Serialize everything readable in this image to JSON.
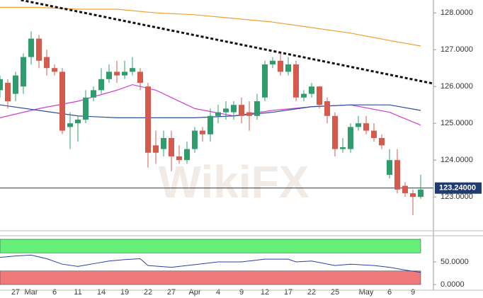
{
  "chart_data": {
    "type": "candlestick",
    "watermark": "WikiFX",
    "categories": [
      null,
      null,
      "27",
      null,
      "Mar",
      null,
      null,
      "6",
      null,
      null,
      "11",
      null,
      null,
      "14",
      null,
      null,
      "19",
      null,
      null,
      "22",
      null,
      null,
      "27",
      null,
      null,
      "Apr",
      null,
      null,
      "4",
      null,
      null,
      "9",
      null,
      null,
      "12",
      null,
      null,
      "17",
      null,
      null,
      "22",
      null,
      null,
      "25",
      null,
      null,
      null,
      "May",
      null,
      null,
      "6",
      null,
      null,
      "9",
      null
    ],
    "open": [
      125.9,
      126.1,
      125.8,
      126.0,
      126.8,
      127.3,
      126.8,
      126.5,
      126.4,
      124.9,
      125.0,
      125.1,
      125.7,
      125.9,
      126.2,
      126.4,
      126.3,
      126.4,
      126.4,
      126.0,
      124.4,
      124.3,
      124.6,
      124.1,
      124.0,
      124.3,
      124.8,
      124.7,
      125.2,
      125.3,
      125.3,
      125.5,
      125.3,
      125.2,
      125.7,
      126.6,
      126.7,
      126.4,
      126.6,
      125.7,
      125.8,
      126.0,
      125.6,
      125.2,
      124.3,
      124.3,
      124.9,
      125.0,
      124.8,
      124.6,
      123.6,
      124.0,
      123.3,
      123.1,
      123.0
    ],
    "high": [
      126.3,
      126.2,
      126.4,
      126.9,
      127.5,
      127.4,
      127.0,
      126.6,
      126.5,
      125.3,
      125.2,
      125.9,
      126.0,
      126.5,
      126.6,
      126.7,
      126.7,
      126.8,
      126.5,
      126.1,
      124.8,
      124.8,
      124.8,
      124.4,
      124.5,
      124.9,
      124.9,
      125.4,
      125.5,
      125.6,
      125.6,
      125.7,
      125.6,
      125.8,
      126.7,
      126.8,
      126.9,
      126.8,
      126.7,
      125.9,
      126.1,
      126.0,
      125.7,
      125.3,
      124.6,
      125.0,
      125.2,
      125.2,
      125.0,
      124.7,
      124.3,
      124.3,
      123.4,
      123.2,
      123.6
    ],
    "low": [
      125.7,
      125.4,
      125.6,
      125.8,
      126.6,
      126.5,
      126.3,
      126.3,
      124.7,
      124.3,
      124.5,
      125.0,
      125.6,
      125.8,
      126.1,
      126.1,
      126.2,
      126.3,
      125.9,
      123.8,
      123.9,
      124.1,
      123.7,
      123.9,
      123.9,
      124.2,
      124.5,
      124.5,
      125.0,
      125.1,
      125.1,
      125.0,
      124.8,
      125.1,
      125.6,
      126.5,
      126.3,
      126.3,
      125.6,
      125.6,
      125.7,
      125.4,
      125.0,
      124.1,
      124.2,
      124.2,
      124.8,
      124.7,
      124.5,
      124.3,
      123.5,
      123.1,
      123.0,
      122.5,
      122.95
    ],
    "close": [
      126.2,
      125.6,
      126.3,
      126.8,
      127.3,
      126.7,
      126.5,
      126.4,
      124.8,
      125.0,
      125.1,
      125.7,
      125.9,
      126.2,
      126.4,
      126.3,
      126.4,
      126.5,
      126.1,
      124.2,
      124.2,
      124.6,
      124.1,
      124.0,
      124.3,
      124.8,
      124.7,
      125.2,
      125.3,
      125.4,
      125.5,
      125.2,
      125.2,
      125.6,
      126.6,
      126.7,
      126.4,
      126.6,
      125.7,
      125.8,
      126.0,
      125.5,
      125.2,
      124.3,
      124.35,
      124.9,
      125.0,
      124.8,
      124.6,
      124.4,
      124.0,
      123.2,
      123.1,
      123.0,
      123.2
    ],
    "up_color": "#2f9c6e",
    "down_color": "#d65a4c",
    "ylim": [
      122.08,
      128.35
    ],
    "yticks": [
      {
        "value": 123,
        "label": "123.0000"
      },
      {
        "value": 124,
        "label": "124.0000"
      },
      {
        "value": 125,
        "label": "125.0000"
      },
      {
        "value": 126,
        "label": "126.0000"
      },
      {
        "value": 127,
        "label": "127.0000"
      },
      {
        "value": 128,
        "label": "128.0000"
      }
    ],
    "last_price": {
      "value": 123.24,
      "label": "123.24000",
      "color": "#1f3b6f"
    },
    "lines": [
      {
        "color": "#f0a030",
        "dashed": false,
        "x": [
          0,
          5,
          10,
          15,
          20,
          25,
          30,
          35,
          40,
          45,
          50,
          54
        ],
        "values": [
          128.15,
          128.15,
          128.1,
          128.1,
          128.0,
          127.95,
          127.85,
          127.75,
          127.6,
          127.45,
          127.25,
          127.1
        ]
      },
      {
        "color": "#d43bd4",
        "dashed": false,
        "x": [
          0,
          5,
          10,
          15,
          17,
          20,
          25,
          30,
          35,
          40,
          45,
          50,
          54
        ],
        "values": [
          125.15,
          125.4,
          125.6,
          125.9,
          126.05,
          125.9,
          125.4,
          125.2,
          125.35,
          125.45,
          125.5,
          125.3,
          124.95
        ]
      },
      {
        "color": "#2a4f9c",
        "dashed": false,
        "x": [
          0,
          5,
          10,
          15,
          20,
          25,
          30,
          35,
          40,
          45,
          50,
          54
        ],
        "values": [
          125.5,
          125.35,
          125.2,
          125.15,
          125.15,
          125.15,
          125.2,
          125.3,
          125.45,
          125.5,
          125.5,
          125.35
        ]
      },
      {
        "color": "#111111",
        "dashed": true,
        "x": [
          2.7,
          55.6
        ],
        "values": [
          128.35,
          126.08
        ]
      }
    ],
    "indicator": {
      "ylim": [
        -12.5,
        107.8
      ],
      "yticks": [
        {
          "value": 50,
          "label": "50.0000"
        },
        {
          "value": 0,
          "label": "0.0000"
        }
      ],
      "bands": [
        {
          "from": 70,
          "to": 100,
          "color": "#66f07a"
        },
        {
          "from": 0,
          "to": 30,
          "color": "#f07a7a"
        }
      ],
      "color": "#2a3fa8",
      "x": [
        0,
        2,
        4,
        6,
        8,
        10,
        12,
        14,
        16,
        18,
        19,
        22,
        25,
        28,
        31,
        34,
        37,
        38,
        40,
        43,
        45,
        48,
        50,
        52,
        54
      ],
      "values": [
        60,
        63,
        65,
        57,
        45,
        40,
        46,
        52,
        55,
        57,
        42,
        38,
        44,
        50,
        50,
        56,
        56,
        50,
        52,
        42,
        45,
        42,
        38,
        32,
        27
      ]
    }
  }
}
